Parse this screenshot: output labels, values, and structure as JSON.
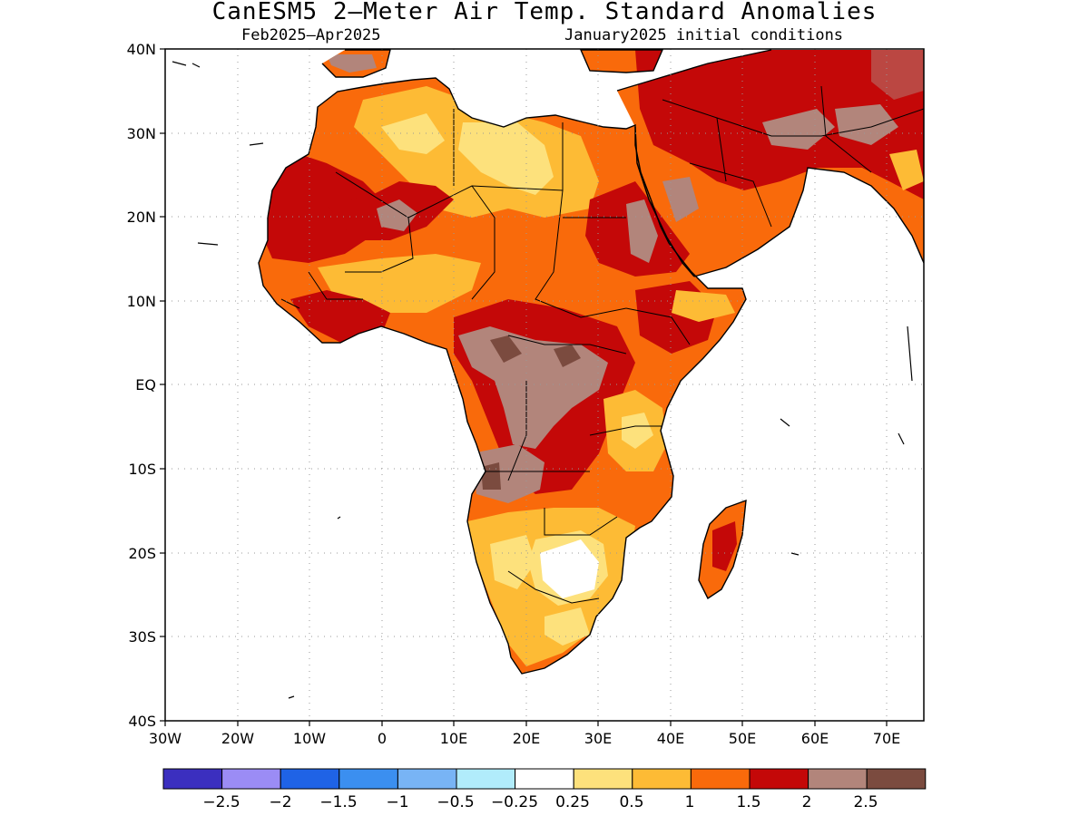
{
  "title": "CanESM5 2—Meter Air Temp. Standard Anomalies",
  "subtitle_left": "Feb2025—Apr2025",
  "subtitle_right": "January2025 initial conditions",
  "map": {
    "lon_range": [
      -30,
      75
    ],
    "lat_range": [
      -40,
      40
    ],
    "lon_ticks": [
      "30W",
      "20W",
      "10W",
      "0",
      "10E",
      "20E",
      "30E",
      "40E",
      "50E",
      "60E",
      "70E"
    ],
    "lat_ticks": [
      "40N",
      "30N",
      "20N",
      "10N",
      "EQ",
      "10S",
      "20S",
      "30S",
      "40S"
    ],
    "ocean_color": "#ffffff",
    "coastline_color": "#000000"
  },
  "colorbar": {
    "colors": [
      "#3b2fbf",
      "#9b8cf5",
      "#1f63e6",
      "#3b8ff0",
      "#78b4f5",
      "#b1ecfb",
      "#ffffff",
      "#fde17c",
      "#fdbb35",
      "#f96a0b",
      "#c40808",
      "#b2857b",
      "#7b4b3f"
    ],
    "labels": [
      "−2.5",
      "−2",
      "−1.5",
      "−1",
      "−0.5",
      "−0.25",
      "0.25",
      "0.5",
      "1",
      "1.5",
      "2",
      "2.5"
    ]
  },
  "anomaly_regions": [
    {
      "region": "Sahara interior",
      "category": "1"
    },
    {
      "region": "Central Sahara",
      "category": "0.5"
    },
    {
      "region": "West Africa / Sahel",
      "category": "2"
    },
    {
      "region": "Arabian Peninsula",
      "category": "2"
    },
    {
      "region": "Congo Basin",
      "category": "2.5"
    },
    {
      "region": "Angola",
      "category": "2.5"
    },
    {
      "region": "Botswana",
      "category": "0.25"
    },
    {
      "region": "South Africa",
      "category": "0.5"
    },
    {
      "region": "East Africa",
      "category": "1.5"
    },
    {
      "region": "Madagascar",
      "category": "1.5"
    },
    {
      "region": "Iran / Middle East",
      "category": "2"
    }
  ]
}
